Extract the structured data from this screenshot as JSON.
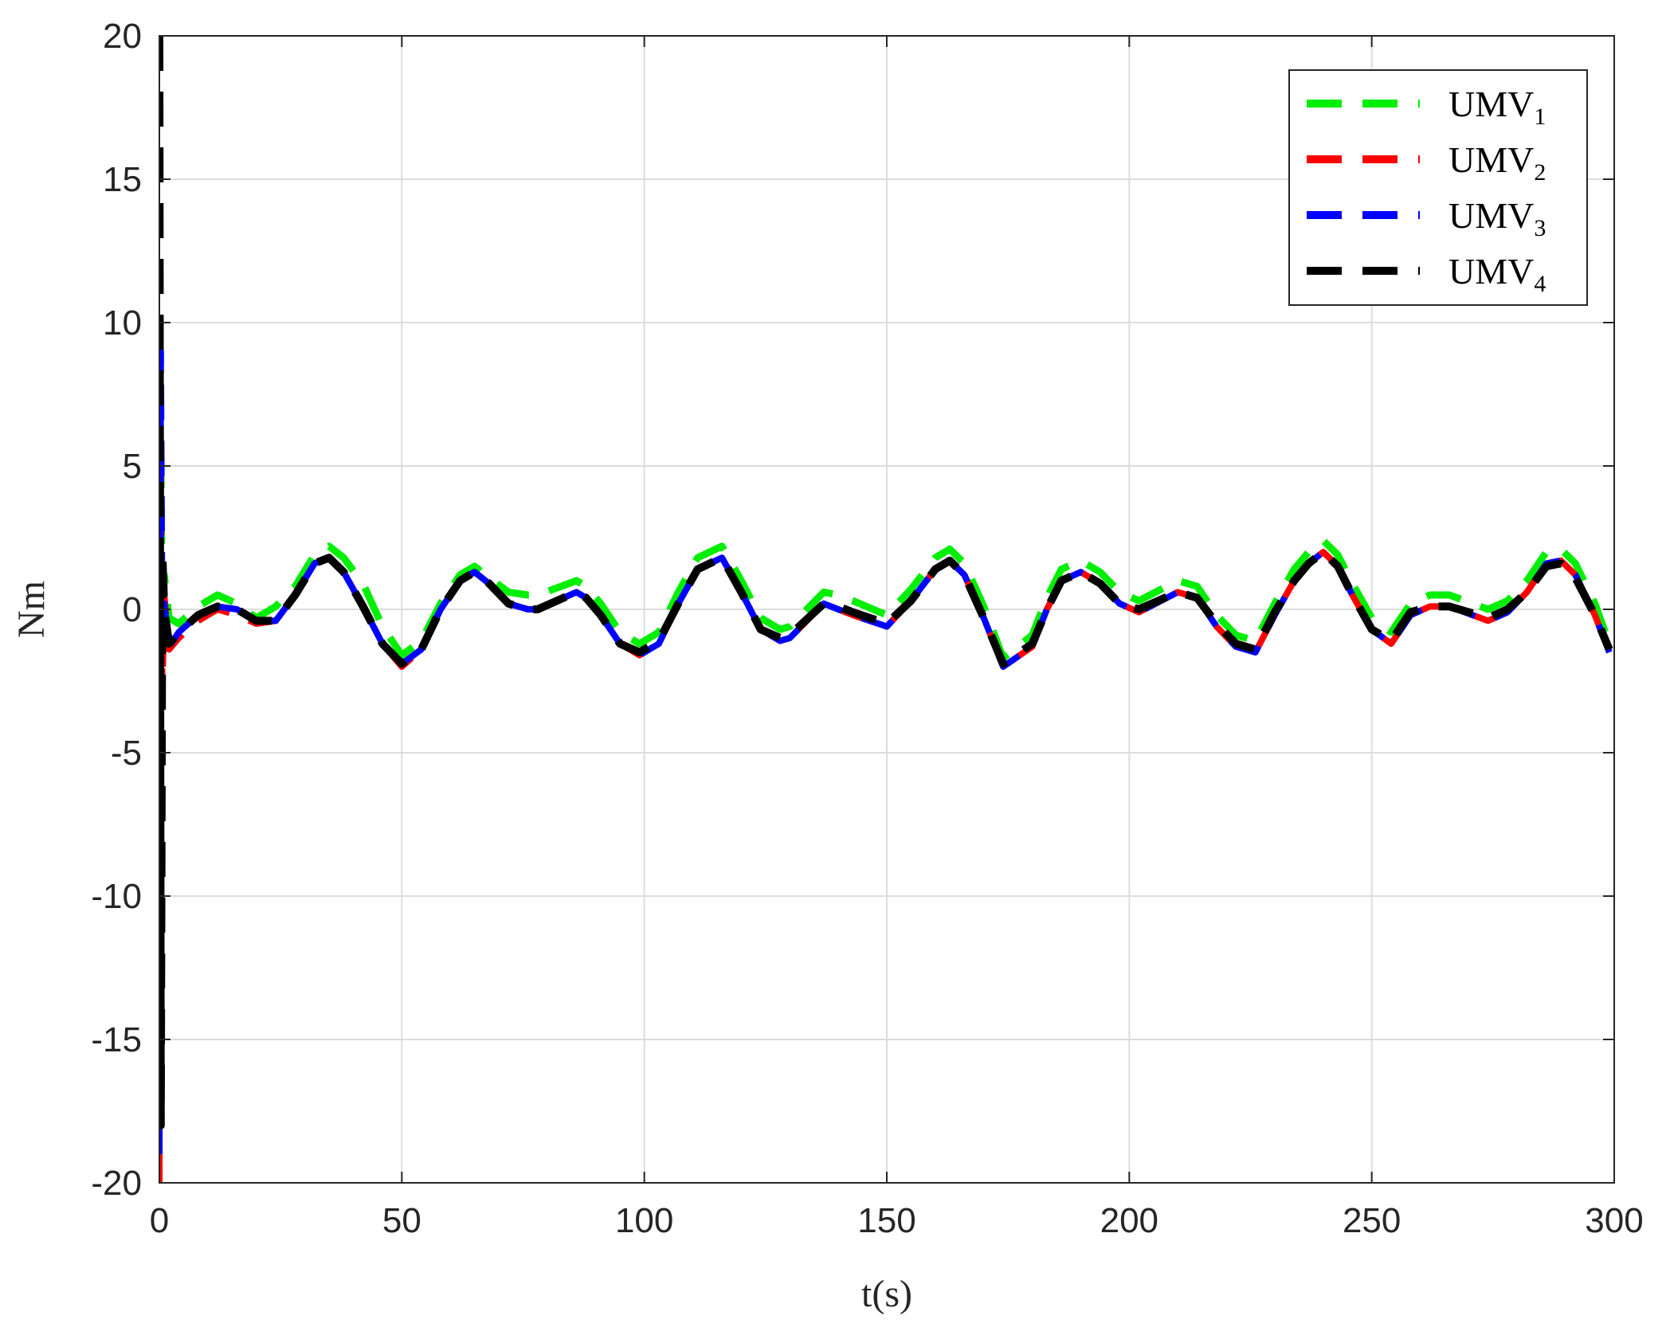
{
  "chart_data": {
    "type": "line",
    "title": "",
    "xlabel": "t(s)",
    "ylabel": "Nm",
    "xlim": [
      0,
      300
    ],
    "ylim": [
      -20,
      20
    ],
    "xticks": [
      0,
      50,
      100,
      150,
      200,
      250,
      300
    ],
    "yticks": [
      -20,
      -15,
      -10,
      -5,
      0,
      5,
      10,
      15,
      20
    ],
    "xtick_labels": [
      "0",
      "50",
      "100",
      "150",
      "200",
      "250",
      "300"
    ],
    "ytick_labels": [
      "-20",
      "-15",
      "-10",
      "-5",
      "0",
      "5",
      "10",
      "15",
      "20"
    ],
    "grid": true,
    "legend_position": "top-right",
    "series": [
      {
        "name": "UMV1",
        "label_main": "UMV",
        "label_sub": "1",
        "color": "#00ee00",
        "style": "dashed",
        "x": [
          0,
          0.3,
          0.6,
          1.0,
          2,
          4,
          8,
          12,
          16,
          20,
          24,
          28,
          32,
          35,
          38,
          42,
          46,
          50,
          54,
          58,
          62,
          65,
          68,
          72,
          76,
          78,
          86,
          88,
          91,
          95,
          99,
          103,
          107,
          111,
          116,
          120,
          124,
          128,
          130,
          137,
          140,
          143,
          150,
          155,
          160,
          163,
          166,
          170,
          174,
          180,
          183,
          186,
          190,
          194,
          198,
          202,
          210,
          214,
          218,
          222,
          226,
          230,
          234,
          237,
          240,
          243,
          246,
          250,
          254,
          258,
          262,
          266,
          274,
          278,
          282,
          286,
          289,
          292,
          296,
          299
        ],
        "y": [
          -9,
          6,
          -2,
          1.2,
          -0.3,
          -0.5,
          0.1,
          0.5,
          0.2,
          -0.3,
          0.1,
          0.8,
          1.9,
          2.2,
          1.8,
          0.9,
          -0.6,
          -1.6,
          -1.1,
          0.2,
          1.2,
          1.5,
          1.1,
          0.6,
          0.5,
          0.5,
          1.0,
          0.8,
          0.2,
          -0.8,
          -1.2,
          -0.8,
          0.6,
          1.8,
          2.2,
          1.0,
          -0.3,
          -0.7,
          -0.6,
          0.6,
          0.5,
          0.3,
          -0.2,
          0.7,
          1.8,
          2.1,
          1.6,
          0.1,
          -1.7,
          -0.9,
          0.4,
          1.4,
          1.7,
          1.3,
          0.6,
          0.3,
          1.0,
          0.8,
          -0.2,
          -0.9,
          -1.1,
          0.2,
          1.4,
          2.0,
          2.4,
          1.9,
          0.9,
          -0.3,
          -0.8,
          0.2,
          0.5,
          0.5,
          0.0,
          0.3,
          1.0,
          2.0,
          2.1,
          1.6,
          0.2,
          -1.2
        ]
      },
      {
        "name": "UMV2",
        "label_main": "UMV",
        "label_sub": "2",
        "color": "#ff0000",
        "style": "dashed",
        "x": [
          0,
          0.3,
          0.6,
          1.0,
          2,
          4,
          8,
          12,
          16,
          20,
          24,
          28,
          32,
          35,
          38,
          42,
          46,
          50,
          54,
          58,
          62,
          65,
          68,
          72,
          76,
          78,
          86,
          88,
          91,
          95,
          99,
          103,
          107,
          111,
          116,
          120,
          124,
          128,
          130,
          137,
          140,
          143,
          150,
          155,
          160,
          163,
          166,
          170,
          174,
          180,
          183,
          186,
          190,
          194,
          198,
          202,
          210,
          214,
          218,
          222,
          226,
          230,
          234,
          237,
          240,
          243,
          246,
          250,
          254,
          258,
          262,
          266,
          274,
          278,
          282,
          286,
          289,
          292,
          296,
          299
        ],
        "y": [
          -20,
          5.5,
          -3,
          0.5,
          -1.4,
          -1.0,
          -0.4,
          0.0,
          -0.2,
          -0.5,
          -0.4,
          0.5,
          1.6,
          1.8,
          1.3,
          0.1,
          -1.2,
          -2.0,
          -1.4,
          0.0,
          1.0,
          1.3,
          0.9,
          0.2,
          0.0,
          0.0,
          0.6,
          0.4,
          -0.2,
          -1.2,
          -1.6,
          -1.2,
          0.2,
          1.4,
          1.8,
          0.6,
          -0.7,
          -1.1,
          -1.0,
          0.2,
          0.0,
          -0.2,
          -0.6,
          0.3,
          1.4,
          1.7,
          1.2,
          -0.3,
          -2.0,
          -1.3,
          0.0,
          1.0,
          1.3,
          0.9,
          0.2,
          -0.1,
          0.6,
          0.4,
          -0.6,
          -1.3,
          -1.5,
          -0.2,
          1.0,
          1.6,
          2.0,
          1.5,
          0.5,
          -0.7,
          -1.2,
          -0.2,
          0.1,
          0.1,
          -0.4,
          -0.1,
          0.6,
          1.6,
          1.7,
          1.2,
          -0.2,
          -1.5
        ]
      },
      {
        "name": "UMV3",
        "label_main": "UMV",
        "label_sub": "3",
        "color": "#0000ff",
        "style": "dashed",
        "x": [
          0,
          0.3,
          0.6,
          1.0,
          2,
          4,
          8,
          12,
          16,
          20,
          24,
          28,
          32,
          35,
          38,
          42,
          46,
          50,
          54,
          58,
          62,
          65,
          68,
          72,
          76,
          78,
          86,
          88,
          91,
          95,
          99,
          103,
          107,
          111,
          116,
          120,
          124,
          128,
          130,
          137,
          140,
          143,
          150,
          155,
          160,
          163,
          166,
          170,
          174,
          180,
          183,
          186,
          190,
          194,
          198,
          202,
          210,
          214,
          218,
          222,
          226,
          230,
          234,
          237,
          240,
          243,
          246,
          250,
          254,
          258,
          262,
          266,
          274,
          278,
          282,
          286,
          289,
          292,
          296,
          299
        ],
        "y": [
          -19,
          9,
          -1,
          0.2,
          -1.3,
          -0.8,
          -0.2,
          0.1,
          0.0,
          -0.4,
          -0.4,
          0.5,
          1.6,
          1.8,
          1.3,
          0.1,
          -1.2,
          -1.9,
          -1.4,
          0.0,
          1.0,
          1.3,
          0.9,
          0.2,
          0.0,
          0.0,
          0.6,
          0.4,
          -0.2,
          -1.2,
          -1.6,
          -1.2,
          0.2,
          1.4,
          1.8,
          0.6,
          -0.7,
          -1.1,
          -1.0,
          0.2,
          0.0,
          -0.2,
          -0.6,
          0.3,
          1.4,
          1.7,
          1.2,
          -0.3,
          -2.0,
          -1.3,
          0.0,
          1.0,
          1.3,
          0.9,
          0.2,
          -0.1,
          0.6,
          0.4,
          -0.6,
          -1.3,
          -1.5,
          -0.2,
          1.0,
          1.6,
          2.0,
          1.5,
          0.5,
          -0.7,
          -1.2,
          -0.2,
          0.1,
          0.1,
          -0.4,
          -0.1,
          0.6,
          1.6,
          1.7,
          1.2,
          -0.2,
          -1.5
        ]
      },
      {
        "name": "UMV4",
        "label_main": "UMV",
        "label_sub": "4",
        "color": "#000000",
        "style": "dashed",
        "x": [
          0,
          0.3,
          0.6,
          1.0,
          2,
          4,
          8,
          12,
          16,
          20,
          24,
          28,
          32,
          35,
          38,
          42,
          46,
          50,
          54,
          58,
          62,
          65,
          68,
          72,
          76,
          78,
          86,
          88,
          91,
          95,
          99,
          103,
          107,
          111,
          116,
          120,
          124,
          128,
          130,
          137,
          140,
          143,
          150,
          155,
          160,
          163,
          166,
          170,
          174,
          180,
          183,
          186,
          190,
          194,
          198,
          202,
          210,
          214,
          218,
          222,
          226,
          230,
          234,
          237,
          240,
          243,
          246,
          250,
          254,
          258,
          262,
          266,
          274,
          278,
          282,
          286,
          289,
          292,
          296,
          299
        ],
        "y": [
          20,
          -18,
          2,
          0.0,
          -1.2,
          -0.8,
          -0.2,
          0.1,
          0.0,
          -0.4,
          -0.4,
          0.5,
          1.6,
          1.8,
          1.3,
          0.1,
          -1.2,
          -1.9,
          -1.4,
          0.0,
          1.0,
          1.3,
          0.9,
          0.2,
          0.0,
          0.0,
          0.6,
          0.4,
          -0.2,
          -1.2,
          -1.5,
          -1.1,
          0.2,
          1.4,
          1.8,
          0.6,
          -0.7,
          -1.0,
          -0.9,
          0.2,
          0.1,
          -0.1,
          -0.5,
          0.3,
          1.4,
          1.7,
          1.2,
          -0.3,
          -1.9,
          -1.2,
          0.0,
          1.0,
          1.3,
          0.9,
          0.2,
          0.0,
          0.6,
          0.4,
          -0.5,
          -1.2,
          -1.4,
          -0.1,
          1.0,
          1.6,
          2.0,
          1.5,
          0.5,
          -0.7,
          -1.1,
          -0.1,
          0.1,
          0.1,
          -0.3,
          0.0,
          0.6,
          1.5,
          1.6,
          1.1,
          -0.2,
          -1.4
        ]
      }
    ]
  }
}
